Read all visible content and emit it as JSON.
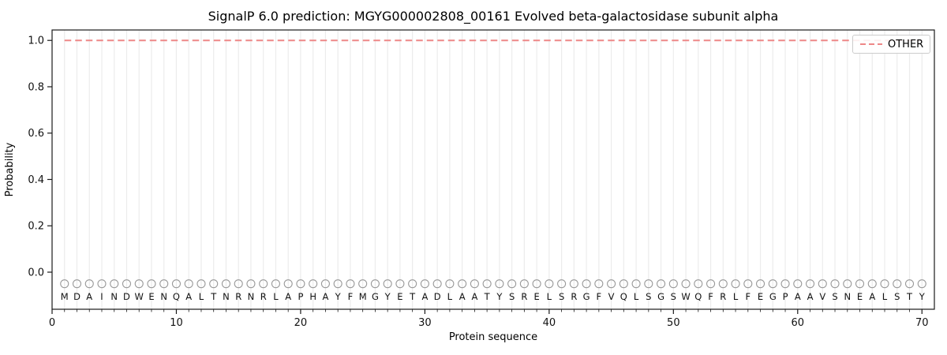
{
  "figure": {
    "title": "SignalP 6.0 prediction: MGYG000002808_00161 Evolved beta-galactosidase subunit alpha",
    "xlabel": "Protein sequence",
    "ylabel": "Probability",
    "legend": {
      "label": "OTHER",
      "line_color": "#ee8787",
      "line_style": "dashed"
    }
  },
  "chart_data": {
    "type": "line",
    "title": "SignalP 6.0 prediction: MGYG000002808_00161 Evolved beta-galactosidase subunit alpha",
    "xlabel": "Protein sequence",
    "ylabel": "Probability",
    "xlim": [
      0,
      71
    ],
    "ylim": [
      -0.16,
      1.045
    ],
    "xticks": [
      0,
      10,
      20,
      30,
      40,
      50,
      60,
      70
    ],
    "yticks": [
      {
        "v": 0.0,
        "label": "0.0"
      },
      {
        "v": 0.2,
        "label": "0.2"
      },
      {
        "v": 0.4,
        "label": "0.4"
      },
      {
        "v": 0.6,
        "label": "0.6"
      },
      {
        "v": 0.8,
        "label": "0.8"
      },
      {
        "v": 1.0,
        "label": "1.0"
      }
    ],
    "grid": "light vertical gridline at every residue position 1-70",
    "legend_position": "upper right",
    "sequence": "MDAINDWENQALTNRNRLAPHAYFMGYETADLAATYSRELSRGFVQLSGSWQFRLFEGPAAVSNEALSTY",
    "series": [
      {
        "name": "OTHER",
        "style": "dashed",
        "color": "#ee8787",
        "x_start": 1,
        "x_step": 1,
        "values": [
          1.0,
          1.0,
          1.0,
          1.0,
          1.0,
          1.0,
          1.0,
          1.0,
          1.0,
          1.0,
          1.0,
          1.0,
          1.0,
          1.0,
          1.0,
          1.0,
          1.0,
          1.0,
          1.0,
          1.0,
          1.0,
          1.0,
          1.0,
          1.0,
          1.0,
          1.0,
          1.0,
          1.0,
          1.0,
          1.0,
          1.0,
          1.0,
          1.0,
          1.0,
          1.0,
          1.0,
          1.0,
          1.0,
          1.0,
          1.0,
          1.0,
          1.0,
          1.0,
          1.0,
          1.0,
          1.0,
          1.0,
          1.0,
          1.0,
          1.0,
          1.0,
          1.0,
          1.0,
          1.0,
          1.0,
          1.0,
          1.0,
          1.0,
          1.0,
          1.0,
          1.0,
          1.0,
          1.0,
          1.0,
          1.0,
          1.0,
          1.0,
          1.0,
          1.0,
          1.0
        ]
      }
    ],
    "residue_markers": {
      "shape": "open-circle",
      "y": -0.05,
      "radius_px": 5
    },
    "residue_letters_y": -0.105,
    "colors": {
      "other_line": "#ee8787",
      "grid": "#ececec",
      "axis": "#1a1a1a",
      "marker_stroke": "#999999",
      "letter": "#111111",
      "tick_label": "#111111"
    }
  }
}
